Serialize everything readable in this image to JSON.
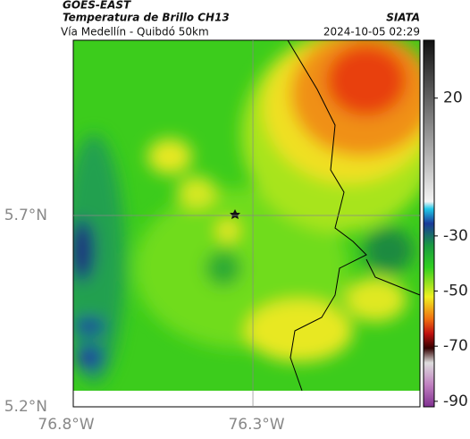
{
  "header": {
    "satellite": "GOES-EAST",
    "product": "Temperatura de Brillo CH13",
    "region": "Vía Medellín - Quibdó 50km",
    "source": "SIATA",
    "datetime": "2024-10-05 02:29"
  },
  "map": {
    "xlim": [
      -76.8,
      -75.835
    ],
    "ylim": [
      5.2,
      6.158
    ],
    "xticks": [
      {
        "value": -76.8,
        "label": "76.8°W"
      },
      {
        "value": -76.3,
        "label": "76.3°W"
      }
    ],
    "yticks": [
      {
        "value": 5.7,
        "label": "5.7°N"
      },
      {
        "value": 5.2,
        "label": "5.2°N"
      }
    ]
  },
  "colorbar": {
    "lim": [
      -92,
      41
    ],
    "ticks": [
      20,
      -30,
      -50,
      -70,
      -90
    ]
  }
}
